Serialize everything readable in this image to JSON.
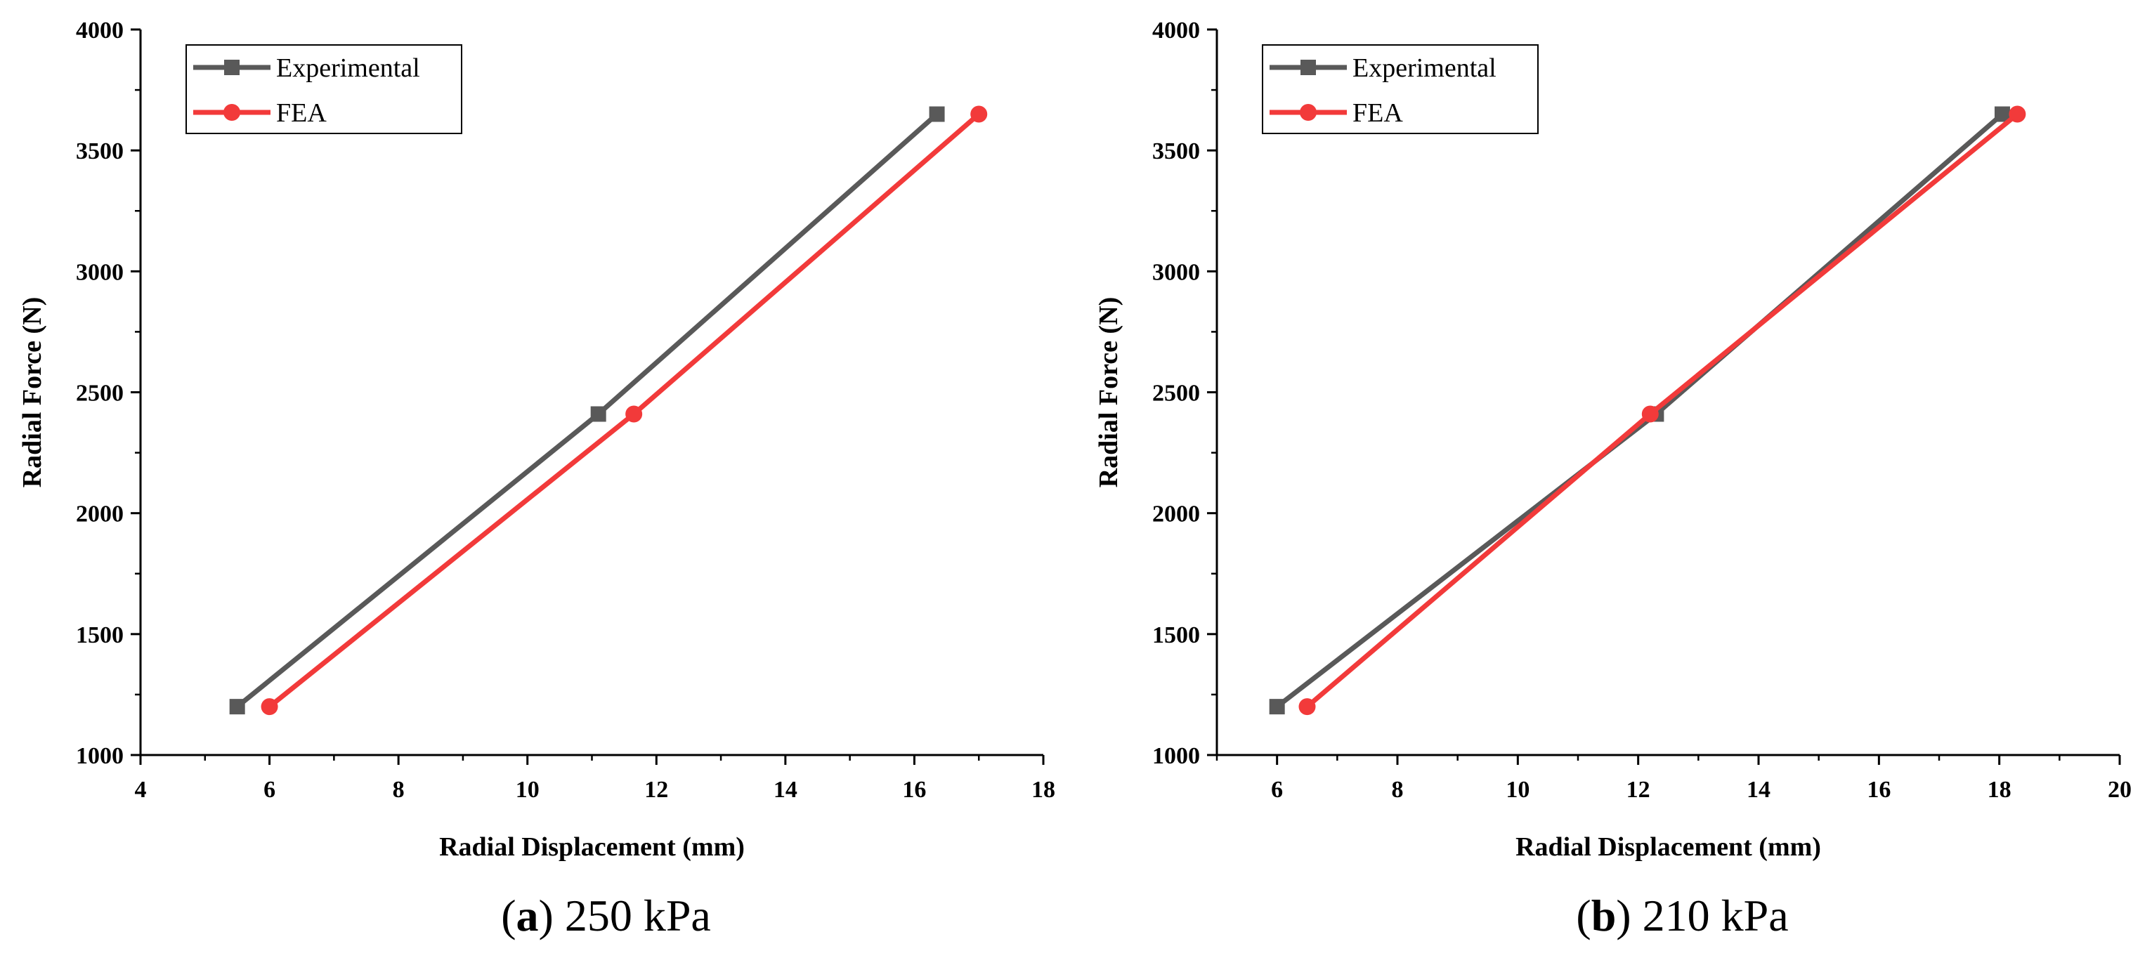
{
  "chart_data": [
    {
      "type": "line",
      "caption_letter": "a",
      "caption_text": " 250 kPa",
      "xlabel": "Radial Displacement (mm)",
      "ylabel": "Radial Force (N)",
      "xlim": [
        4,
        18
      ],
      "ylim": [
        1000,
        4000
      ],
      "xticks": [
        4,
        6,
        8,
        10,
        12,
        14,
        16,
        18
      ],
      "yticks": [
        1000,
        1500,
        2000,
        2500,
        3000,
        3500,
        4000
      ],
      "grid": false,
      "legend": "top-left",
      "series": [
        {
          "name": "Experimental",
          "marker": "square",
          "color": "#595959",
          "x": [
            5.5,
            11.1,
            16.35
          ],
          "y": [
            1200,
            2410,
            3650
          ]
        },
        {
          "name": "FEA",
          "marker": "circle",
          "color": "#f23a3a",
          "x": [
            6.0,
            11.65,
            17.0
          ],
          "y": [
            1200,
            2410,
            3650
          ]
        }
      ]
    },
    {
      "type": "line",
      "caption_letter": "b",
      "caption_text": " 210 kPa",
      "xlabel": "Radial Displacement (mm)",
      "ylabel": "Radial Force (N)",
      "xlim": [
        5,
        20
      ],
      "ylim": [
        1000,
        4000
      ],
      "xticks": [
        6,
        8,
        10,
        12,
        14,
        16,
        18,
        20
      ],
      "yticks": [
        1000,
        1500,
        2000,
        2500,
        3000,
        3500,
        4000
      ],
      "grid": false,
      "legend": "top-left",
      "series": [
        {
          "name": "Experimental",
          "marker": "square",
          "color": "#595959",
          "x": [
            6.0,
            12.3,
            18.05
          ],
          "y": [
            1200,
            2410,
            3650
          ]
        },
        {
          "name": "FEA",
          "marker": "circle",
          "color": "#f23a3a",
          "x": [
            6.5,
            12.2,
            18.3
          ],
          "y": [
            1200,
            2410,
            3650
          ]
        }
      ]
    }
  ]
}
